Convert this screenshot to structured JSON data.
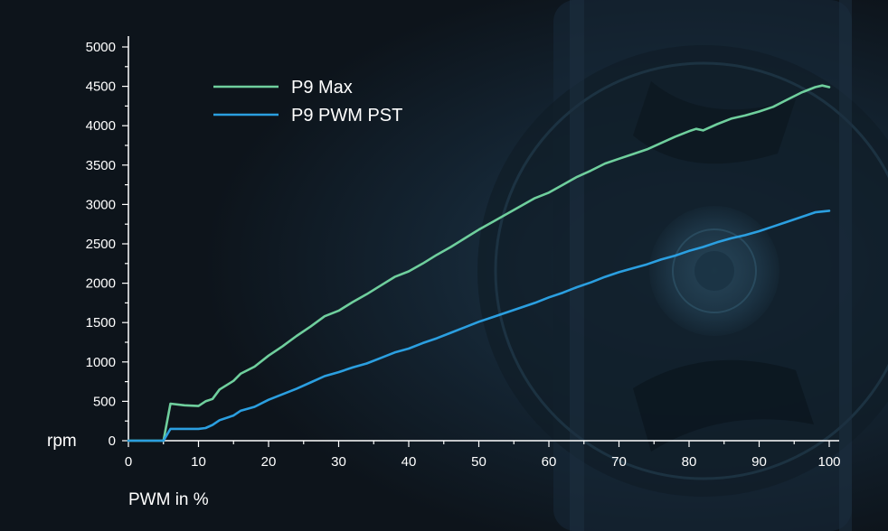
{
  "chart_data": {
    "type": "line",
    "title": "",
    "xlabel": "PWM in %",
    "ylabel": "rpm",
    "xlim": [
      0,
      100
    ],
    "ylim": [
      0,
      5000
    ],
    "x_ticks": [
      0,
      10,
      20,
      30,
      40,
      50,
      60,
      70,
      80,
      90,
      100
    ],
    "y_ticks": [
      0,
      500,
      1000,
      1500,
      2000,
      2500,
      3000,
      3500,
      4000,
      4500,
      5000
    ],
    "grid": false,
    "legend_position": "top-left",
    "series": [
      {
        "name": "P9 Max",
        "color": "#6fcf9d",
        "x": [
          0,
          4,
          5,
          6,
          8,
          10,
          11,
          12,
          13,
          15,
          16,
          18,
          20,
          22,
          24,
          26,
          28,
          30,
          32,
          34,
          36,
          38,
          40,
          42,
          44,
          46,
          48,
          50,
          52,
          54,
          56,
          58,
          60,
          62,
          64,
          66,
          68,
          70,
          72,
          74,
          76,
          78,
          80,
          81,
          82,
          84,
          86,
          88,
          90,
          92,
          94,
          96,
          98,
          99,
          100
        ],
        "values": [
          0,
          0,
          0,
          470,
          450,
          440,
          500,
          530,
          650,
          760,
          850,
          940,
          1080,
          1200,
          1330,
          1450,
          1580,
          1650,
          1760,
          1860,
          1970,
          2080,
          2150,
          2250,
          2360,
          2460,
          2570,
          2680,
          2780,
          2880,
          2980,
          3080,
          3150,
          3250,
          3350,
          3430,
          3520,
          3580,
          3640,
          3700,
          3780,
          3860,
          3930,
          3960,
          3940,
          4020,
          4090,
          4130,
          4180,
          4240,
          4330,
          4420,
          4490,
          4510,
          4490
        ]
      },
      {
        "name": "P9 PWM PST",
        "color": "#2b9fe0",
        "x": [
          0,
          4,
          5,
          6,
          8,
          10,
          11,
          12,
          13,
          15,
          16,
          18,
          20,
          22,
          24,
          26,
          28,
          30,
          32,
          34,
          36,
          38,
          40,
          42,
          44,
          46,
          48,
          50,
          52,
          54,
          56,
          58,
          60,
          62,
          64,
          66,
          68,
          70,
          72,
          74,
          76,
          78,
          80,
          82,
          84,
          86,
          88,
          90,
          92,
          94,
          96,
          98,
          100
        ],
        "values": [
          0,
          0,
          0,
          150,
          150,
          150,
          160,
          200,
          260,
          320,
          380,
          430,
          520,
          590,
          660,
          740,
          820,
          870,
          930,
          980,
          1050,
          1120,
          1170,
          1240,
          1300,
          1370,
          1440,
          1510,
          1570,
          1630,
          1690,
          1750,
          1820,
          1880,
          1950,
          2010,
          2080,
          2140,
          2190,
          2240,
          2300,
          2350,
          2410,
          2460,
          2520,
          2570,
          2610,
          2660,
          2720,
          2780,
          2840,
          2900,
          2920
        ]
      }
    ]
  }
}
